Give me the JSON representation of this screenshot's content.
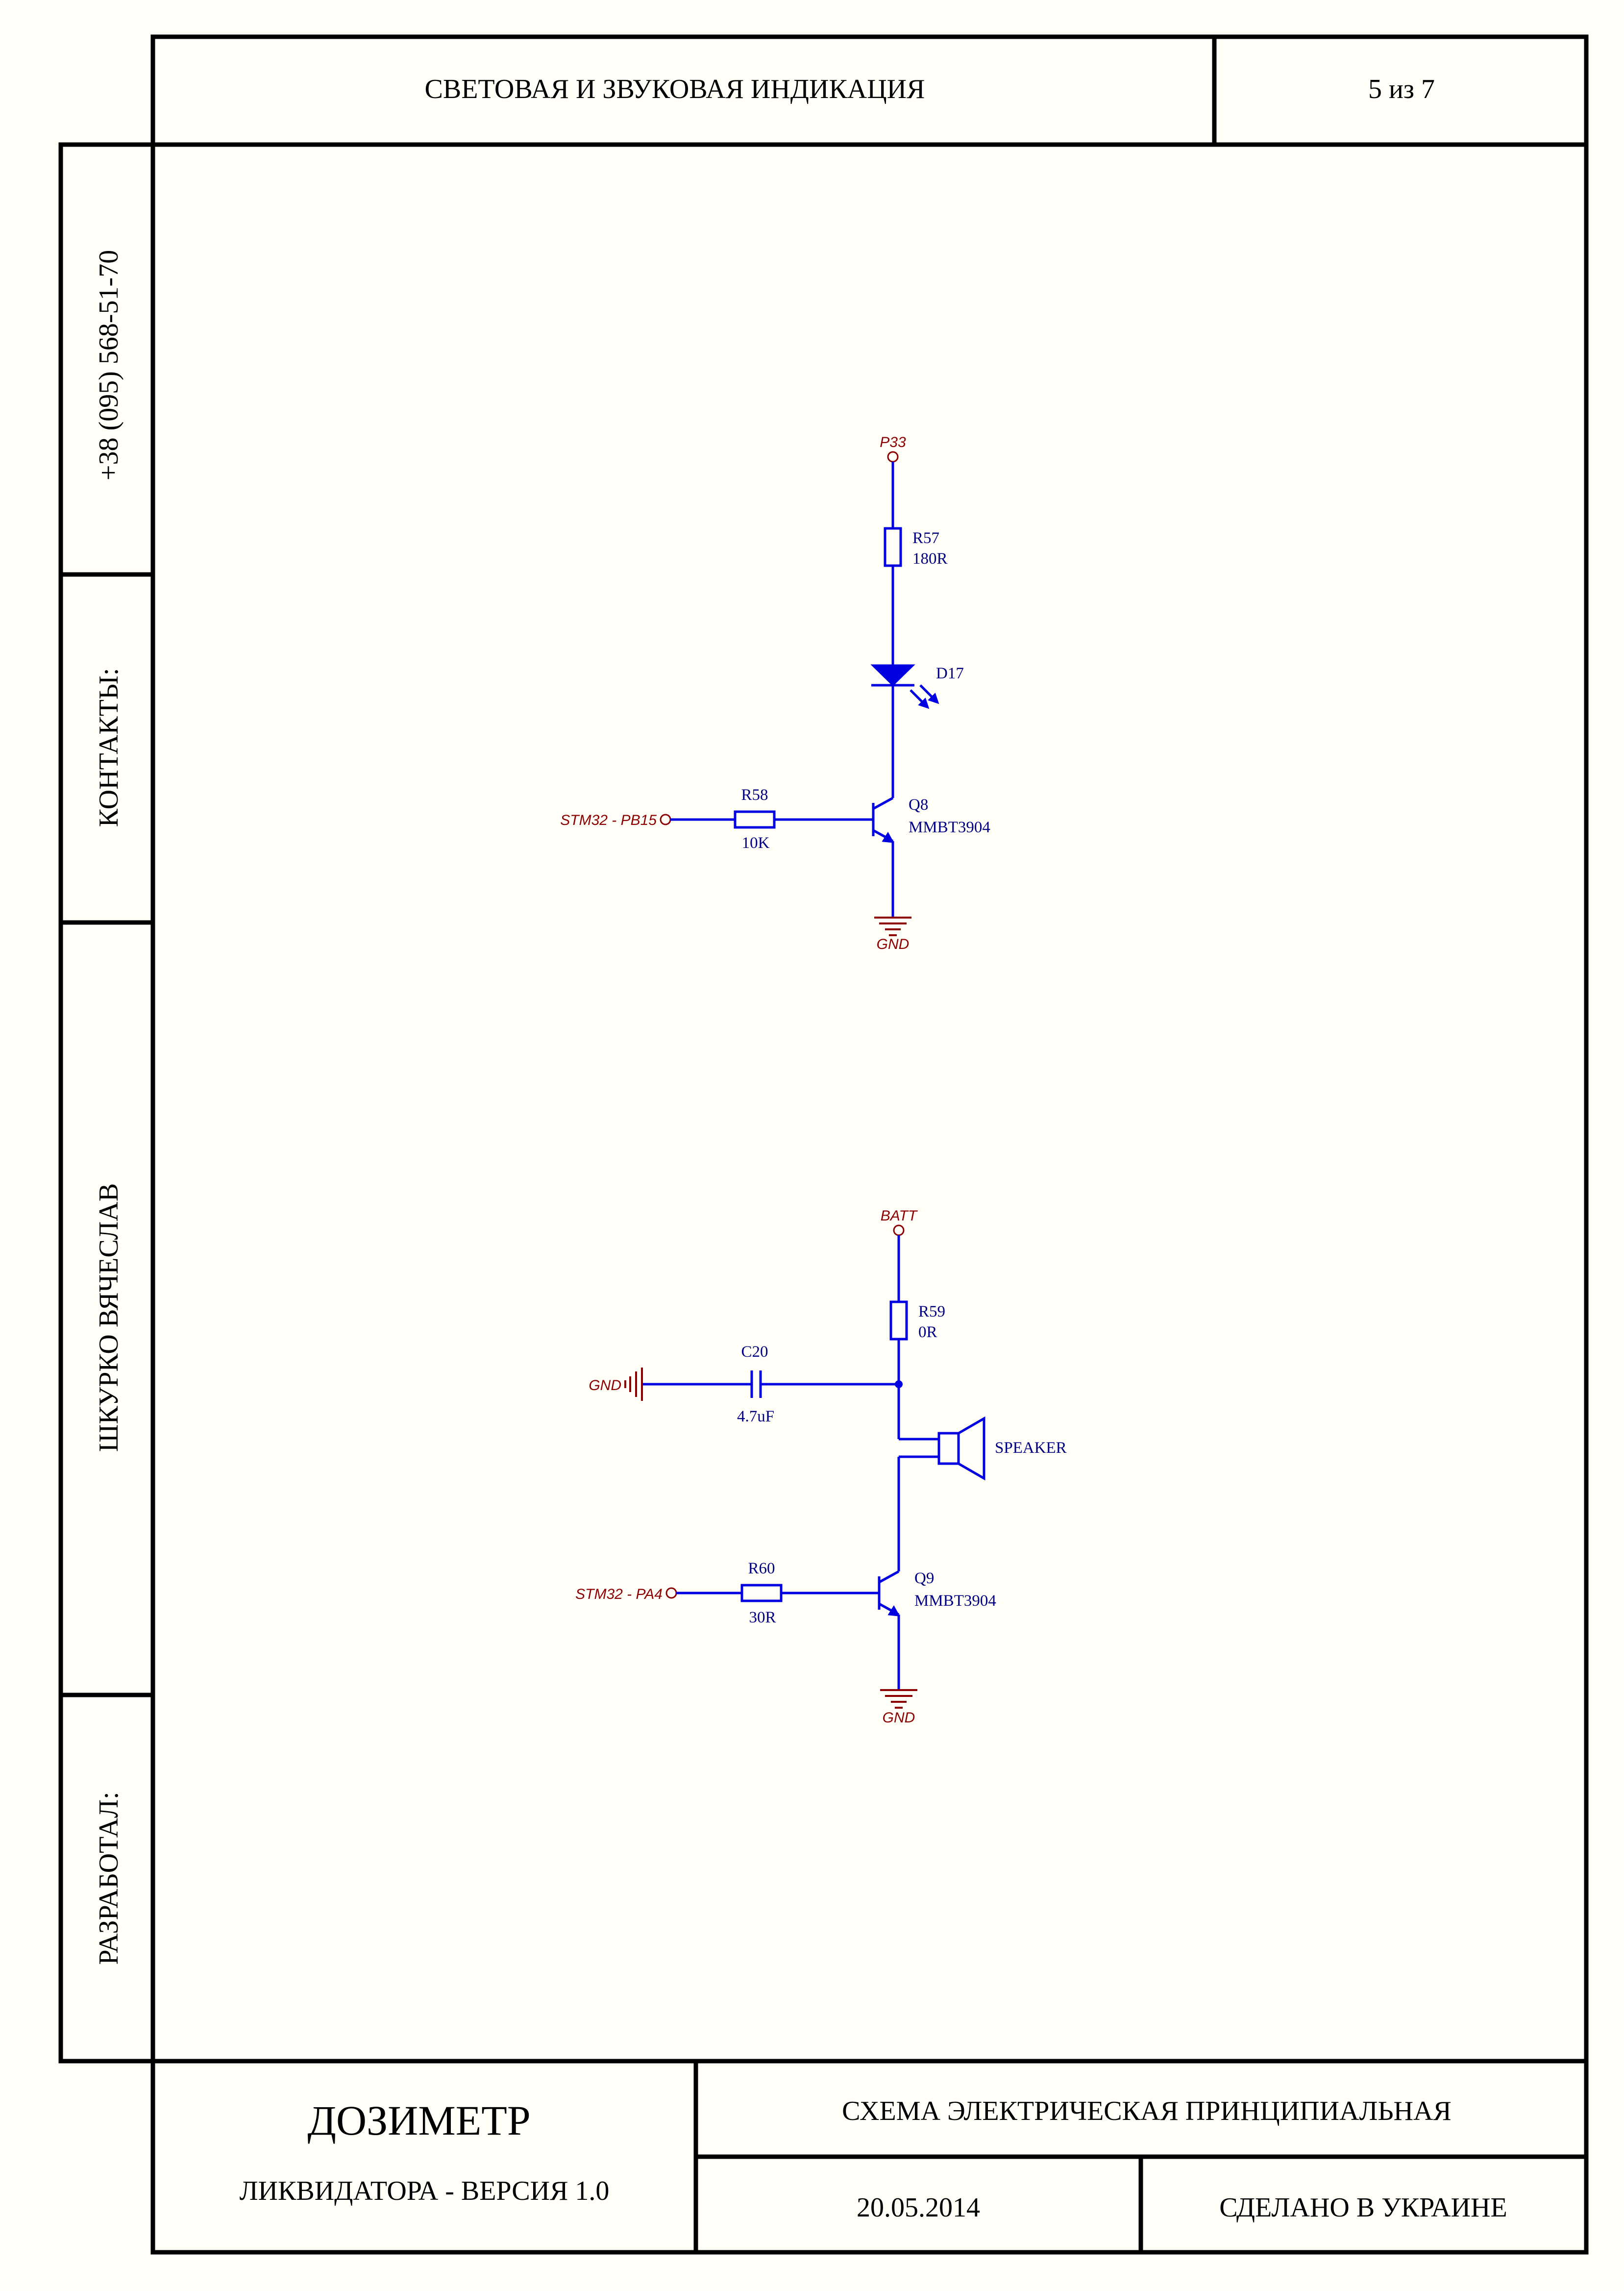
{
  "title_block": {
    "sheet_title": "СВЕТОВАЯ И ЗВУКОВАЯ ИНДИКАЦИЯ",
    "sheet_number": "5 из 7",
    "product_name": "ДОЗИМЕТР",
    "product_subtitle": "ЛИКВИДАТОРА - ВЕРСИЯ 1.0",
    "doc_type": "СХЕМА ЭЛЕКТРИЧЕСКАЯ ПРИНЦИПИАЛЬНАЯ",
    "date": "20.05.2014",
    "origin": "СДЕЛАНО В УКРАИНЕ"
  },
  "side_panel": {
    "phone": "+38 (095) 568-51-70",
    "contacts_label": "КОНТАКТЫ:",
    "author": "ШКУРКО ВЯЧЕСЛАВ",
    "developer_label": "РАЗРАБОТАЛ:"
  },
  "led_circuit": {
    "power_net": "P33",
    "r57": {
      "ref": "R57",
      "value": "180R"
    },
    "d17": {
      "ref": "D17"
    },
    "r58": {
      "ref": "R58",
      "value": "10K"
    },
    "q8": {
      "ref": "Q8",
      "value": "MMBT3904"
    },
    "input_net": "STM32 - PB15",
    "gnd_net": "GND"
  },
  "speaker_circuit": {
    "power_net": "BATT",
    "r59": {
      "ref": "R59",
      "value": "0R"
    },
    "c20": {
      "ref": "C20",
      "value": "4.7uF"
    },
    "cap_gnd_net": "GND",
    "speaker": {
      "ref": "SPEAKER"
    },
    "r60": {
      "ref": "R60",
      "value": "30R"
    },
    "q9": {
      "ref": "Q9",
      "value": "MMBT3904"
    },
    "input_net": "STM32 - PA4",
    "gnd_net": "GND"
  },
  "colors": {
    "frame": "#000000",
    "wire": "#0000e0",
    "net_label": "#8b0000",
    "designator": "#000080",
    "background": "#fffff8"
  }
}
